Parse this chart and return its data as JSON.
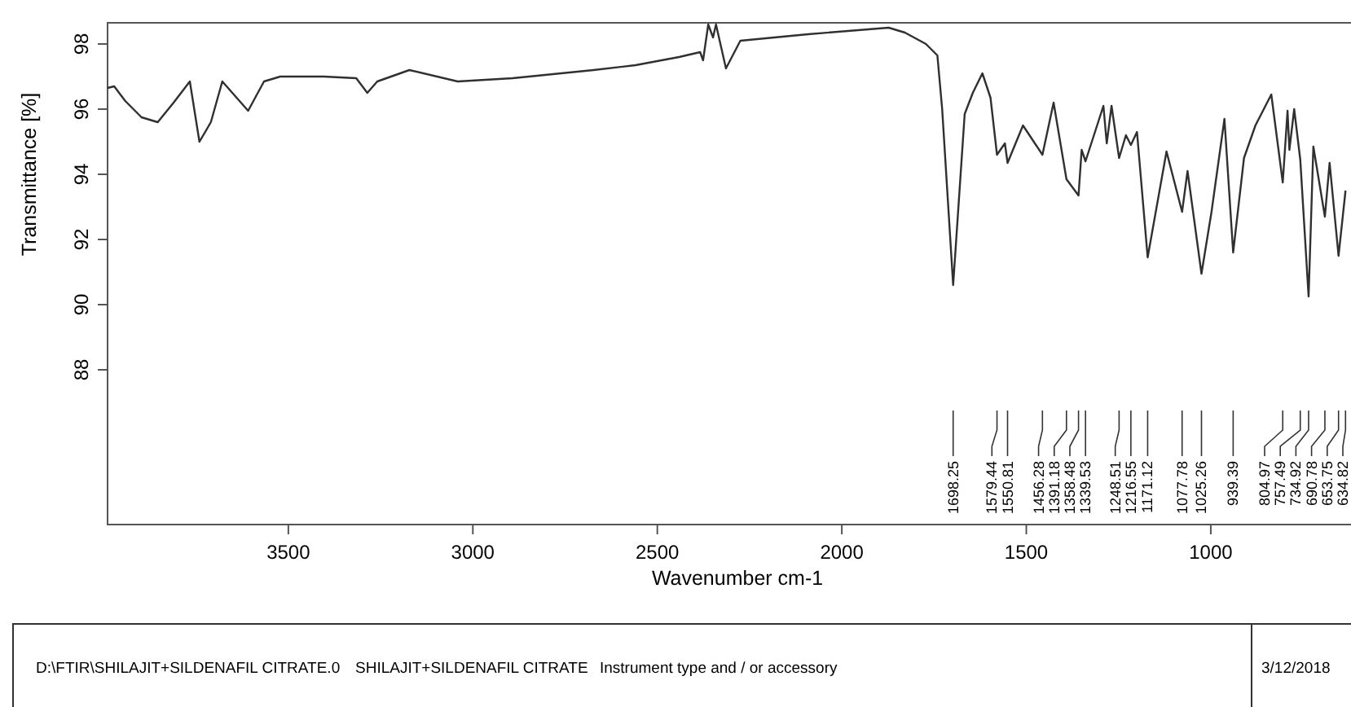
{
  "chart_data": {
    "type": "line",
    "xlabel": "Wavenumber cm-1",
    "ylabel": "Transmittance [%]",
    "xlim": [
      3990,
      620
    ],
    "ylim": [
      83.25,
      98.65
    ],
    "xticks": [
      3500,
      3000,
      2500,
      2000,
      1500,
      1000
    ],
    "yticks": [
      88,
      90,
      92,
      94,
      96,
      98
    ],
    "grid": false,
    "marker": "none",
    "line_style": "solid",
    "series": [
      {
        "color": "#303030",
        "x": [
          3990,
          3972,
          3942,
          3898,
          3854,
          3811,
          3767,
          3741,
          3710,
          3679,
          3609,
          3566,
          3522,
          3404,
          3316,
          3286,
          3259,
          3172,
          3041,
          2892,
          2673,
          2559,
          2441,
          2384,
          2376,
          2362,
          2349,
          2341,
          2314,
          2275,
          2091,
          1873,
          1829,
          1772,
          1741,
          1728,
          1698.25,
          1667,
          1645,
          1619,
          1597,
          1579.44,
          1558,
          1550.81,
          1509,
          1456.28,
          1426,
          1391.18,
          1358.48,
          1350,
          1339.53,
          1291,
          1282,
          1269,
          1248.51,
          1230,
          1216.55,
          1200,
          1171.12,
          1120,
          1077.78,
          1063,
          1025.26,
          998,
          963,
          939.39,
          910,
          879,
          836,
          804.97,
          792,
          787,
          774,
          757.49,
          734.92,
          722,
          690.78,
          678,
          653.75,
          634.82
        ],
        "values": [
          96.65,
          96.7,
          96.25,
          95.75,
          95.6,
          96.2,
          96.85,
          95.0,
          95.6,
          96.85,
          95.95,
          96.85,
          97.0,
          97.0,
          96.95,
          96.5,
          96.85,
          97.2,
          96.85,
          96.95,
          97.2,
          97.35,
          97.6,
          97.75,
          97.5,
          98.6,
          98.2,
          98.6,
          97.25,
          98.1,
          98.3,
          98.5,
          98.35,
          98.0,
          97.65,
          96.0,
          90.6,
          95.85,
          96.5,
          97.1,
          96.35,
          94.6,
          94.95,
          94.35,
          95.5,
          94.6,
          96.2,
          93.85,
          93.35,
          94.75,
          94.4,
          96.1,
          94.95,
          96.1,
          94.5,
          95.2,
          94.9,
          95.3,
          91.45,
          94.7,
          92.85,
          94.1,
          90.95,
          92.85,
          95.7,
          91.6,
          94.5,
          95.5,
          96.45,
          93.75,
          95.95,
          94.75,
          96.0,
          94.45,
          90.25,
          94.85,
          92.7,
          94.35,
          91.5,
          93.5
        ]
      }
    ],
    "annotations": [
      {
        "text": "1698.25",
        "x": 1698.25
      },
      {
        "text": "1579.44",
        "x": 1579.44
      },
      {
        "text": "1550.81",
        "x": 1550.81
      },
      {
        "text": "1456.28",
        "x": 1456.28
      },
      {
        "text": "1391.18",
        "x": 1391.18
      },
      {
        "text": "1358.48",
        "x": 1358.48
      },
      {
        "text": "1339.53",
        "x": 1339.53
      },
      {
        "text": "1248.51",
        "x": 1248.51
      },
      {
        "text": "1216.55",
        "x": 1216.55
      },
      {
        "text": "1171.12",
        "x": 1171.12
      },
      {
        "text": "1077.78",
        "x": 1077.78
      },
      {
        "text": "1025.26",
        "x": 1025.26
      },
      {
        "text": "939.39",
        "x": 939.39
      },
      {
        "text": "804.97",
        "x": 804.97
      },
      {
        "text": "757.49",
        "x": 757.49
      },
      {
        "text": "734.92",
        "x": 734.92
      },
      {
        "text": "690.78",
        "x": 690.78
      },
      {
        "text": "653.75",
        "x": 653.75
      },
      {
        "text": "634.82",
        "x": 634.82
      },
      "D:\\FTIR\\SHILAJIT+SILDENAFIL CITRATE.0",
      "SHILAJIT+SILDENAFIL CITRATE",
      "Instrument type and / or accessory",
      "3/12/2018"
    ]
  }
}
